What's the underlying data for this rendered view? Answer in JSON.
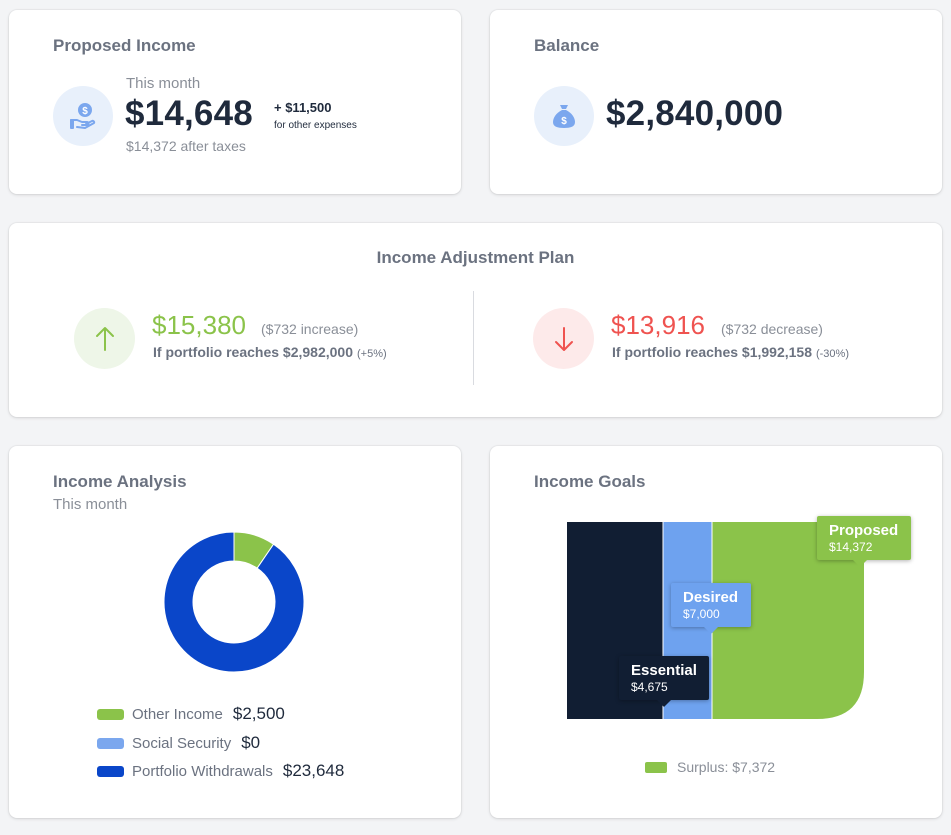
{
  "proposed_income": {
    "title": "Proposed Income",
    "period_label": "This month",
    "amount": "$14,648",
    "extra_amount": "+ $11,500",
    "extra_label": "for other expenses",
    "after_taxes": "$14,372 after taxes",
    "icon": "hand-dollar-icon"
  },
  "balance": {
    "title": "Balance",
    "amount": "$2,840,000",
    "icon": "money-bag-icon"
  },
  "adjustment_plan": {
    "title": "Income Adjustment Plan",
    "increase": {
      "amount": "$15,380",
      "change": "($732 increase)",
      "condition": "If portfolio reaches $2,982,000",
      "pct": "(+5%)",
      "color": "#8bc34a",
      "icon": "arrow-up-icon"
    },
    "decrease": {
      "amount": "$13,916",
      "change": "($732 decrease)",
      "condition": "If portfolio reaches $1,992,158",
      "pct": "(-30%)",
      "color": "#ef5350",
      "icon": "arrow-down-icon"
    }
  },
  "income_analysis": {
    "title": "Income Analysis",
    "subtitle": "This month",
    "legend": [
      {
        "label": "Other Income",
        "value": "$2,500",
        "color": "#8bc34a"
      },
      {
        "label": "Social Security",
        "value": "$0",
        "color": "#7ba7ee"
      },
      {
        "label": "Portfolio Withdrawals",
        "value": "$23,648",
        "color": "#0a46c9"
      }
    ]
  },
  "income_goals": {
    "title": "Income Goals",
    "essential": {
      "label": "Essential",
      "value": "$4,675",
      "color": "#111e33"
    },
    "desired": {
      "label": "Desired",
      "value": "$7,000",
      "color": "#6ea2ef"
    },
    "proposed": {
      "label": "Proposed",
      "value": "$14,372",
      "color": "#8bc34a"
    },
    "surplus_label": "Surplus: $7,372"
  },
  "chart_data": {
    "type": "pie",
    "title": "Income Analysis",
    "categories": [
      "Other Income",
      "Social Security",
      "Portfolio Withdrawals"
    ],
    "values": [
      2500,
      0,
      23648
    ],
    "colors": [
      "#8bc34a",
      "#7ba7ee",
      "#0a46c9"
    ]
  }
}
